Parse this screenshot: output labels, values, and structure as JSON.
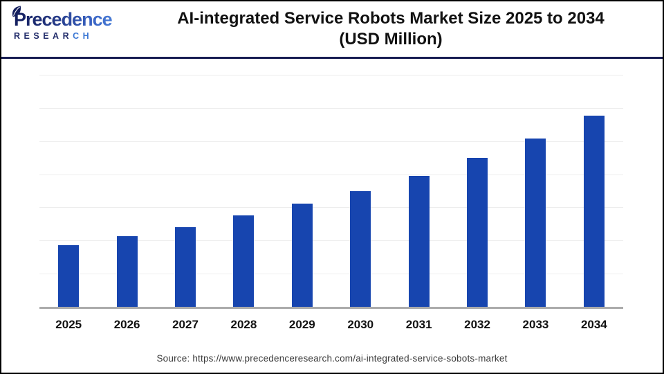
{
  "logo": {
    "brand_line1": "Precedence",
    "brand_line2_dark": "RESEAR",
    "brand_line2_light": "CH",
    "color_dark": "#141f5e",
    "color_light": "#4a80d9"
  },
  "header": {
    "title_line1": "AI-integrated Service Robots Market Size 2025 to 2034",
    "title_line2": "(USD Million)"
  },
  "chart_data": {
    "type": "bar",
    "title": "AI-integrated Service Robots Market Size 2025 to 2034",
    "subtitle": "(USD Million)",
    "categories": [
      "2025",
      "2026",
      "2027",
      "2028",
      "2029",
      "2030",
      "2031",
      "2032",
      "2033",
      "2034"
    ],
    "values": [
      1.87,
      2.13,
      2.4,
      2.75,
      3.11,
      3.5,
      3.96,
      4.49,
      5.08,
      5.76
    ],
    "ylim": [
      0,
      7
    ],
    "xlabel": "",
    "ylabel": "",
    "y_tick_labels_visible": false,
    "gridline_count": 7,
    "grid": "horizontal",
    "legend": "none",
    "bar_color": "#1745af",
    "gridline_color": "#ededed",
    "axis_line_color": "#ababab",
    "note": "Y-axis has no tick labels in the source image; values are estimated in gridline-interval units (chart shows 7 equal horizontal intervals)."
  },
  "footer": {
    "source": "Source: https://www.precedenceresearch.com/ai-integrated-service-sobots-market"
  },
  "colors": {
    "header_divider": "#181d52",
    "frame_border": "#000000",
    "title_text": "#111111",
    "tick_text": "#111111",
    "source_text": "#3a3a3a"
  }
}
